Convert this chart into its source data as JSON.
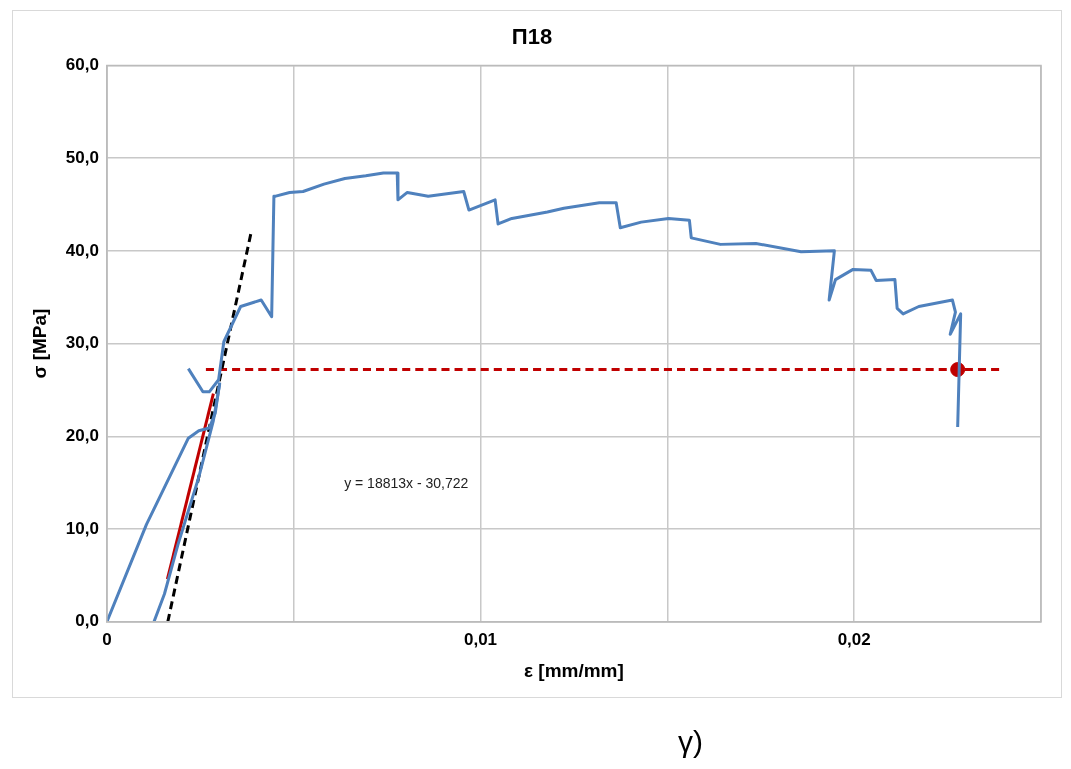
{
  "chart_data": {
    "type": "line",
    "title": "Π18",
    "xlabel": "ε [mm/mm]",
    "ylabel": "σ [MPa]",
    "xlim": [
      0,
      0.025
    ],
    "xticks": [
      {
        "value": 0,
        "label": "0"
      },
      {
        "value": 0.005,
        "label": null
      },
      {
        "value": 0.01,
        "label": "0,01"
      },
      {
        "value": 0.015,
        "label": null
      },
      {
        "value": 0.02,
        "label": "0,02"
      },
      {
        "value": 0.025,
        "label": null
      }
    ],
    "ylim": [
      0,
      60
    ],
    "yticks": [
      {
        "value": 0,
        "label": "0,0"
      },
      {
        "value": 10,
        "label": "10,0"
      },
      {
        "value": 20,
        "label": "20,0"
      },
      {
        "value": 30,
        "label": "30,0"
      },
      {
        "value": 40,
        "label": "40,0"
      },
      {
        "value": 50,
        "label": "50,0"
      },
      {
        "value": 60,
        "label": "60,0"
      }
    ],
    "grid": true,
    "marker": "none",
    "annotations": [
      "y = 18813x - 30,722",
      "γ)"
    ],
    "series": [
      {
        "color": "#4f81bd",
        "x": [
          0,
          0.00106,
          0.00218,
          0.00246,
          0.00274,
          0.0029,
          0.00302
        ],
        "values": [
          0,
          10.5,
          19.8,
          20.6,
          20.9,
          22.5,
          25.8
        ]
      },
      {
        "color": "#4f81bd",
        "x": [
          0.00126,
          0.00154,
          0.0019,
          0.00246,
          0.00285,
          0.00302
        ],
        "values": [
          0,
          3.0,
          8.3,
          15.6,
          21.7,
          25.7
        ]
      },
      {
        "color": "#4f81bd",
        "x": [
          0.00218,
          0.00257,
          0.00274,
          0.00299,
          0.00313,
          0.00358,
          0.00413,
          0.00441,
          0.00447,
          0.00452,
          0.00489,
          0.00525,
          0.00581,
          0.00637,
          0.00693,
          0.0074,
          0.00777,
          0.00779,
          0.00804,
          0.0086,
          0.00955,
          0.00969,
          0.01039,
          0.01047,
          0.01084,
          0.01179,
          0.01223,
          0.01318,
          0.01363,
          0.01374,
          0.0143,
          0.01503,
          0.01559,
          0.01564,
          0.01642,
          0.01737,
          0.01858,
          0.01947,
          0.01933,
          0.0195,
          0.01997,
          0.02045,
          0.02059,
          0.02109,
          0.02115,
          0.02131,
          0.02173,
          0.02263,
          0.02271,
          0.02257,
          0.02285,
          0.02277
        ],
        "values": [
          27.3,
          24.8,
          24.8,
          26.1,
          30.2,
          34.0,
          34.7,
          32.9,
          45.9,
          45.9,
          46.3,
          46.4,
          47.2,
          47.8,
          48.1,
          48.4,
          48.4,
          45.5,
          46.3,
          45.9,
          46.4,
          44.4,
          45.5,
          42.9,
          43.5,
          44.2,
          44.6,
          45.2,
          45.2,
          42.5,
          43.1,
          43.5,
          43.3,
          41.4,
          40.7,
          40.8,
          39.9,
          40.0,
          34.7,
          36.9,
          38.0,
          37.9,
          36.8,
          36.9,
          33.8,
          33.2,
          34.0,
          34.7,
          33.4,
          31.0,
          33.2,
          21.0
        ]
      },
      {
        "color": "#c00000",
        "x": [
          0.00162,
          0.00285
        ],
        "values": [
          4.6,
          24.6
        ]
      },
      {
        "color": "#000000",
        "line_style": "dashed",
        "x": [
          0.00163,
          0.00385
        ],
        "values": [
          0,
          41.8
        ]
      },
      {
        "color": "#c00000",
        "line_style": "dashed",
        "x": [
          0.00265,
          0.02388
        ],
        "values": [
          27.2,
          27.2
        ]
      },
      {
        "type": "scatter",
        "marker": "circle",
        "color": "#c00000",
        "x": [
          0.02277
        ],
        "values": [
          27.2
        ]
      }
    ]
  }
}
